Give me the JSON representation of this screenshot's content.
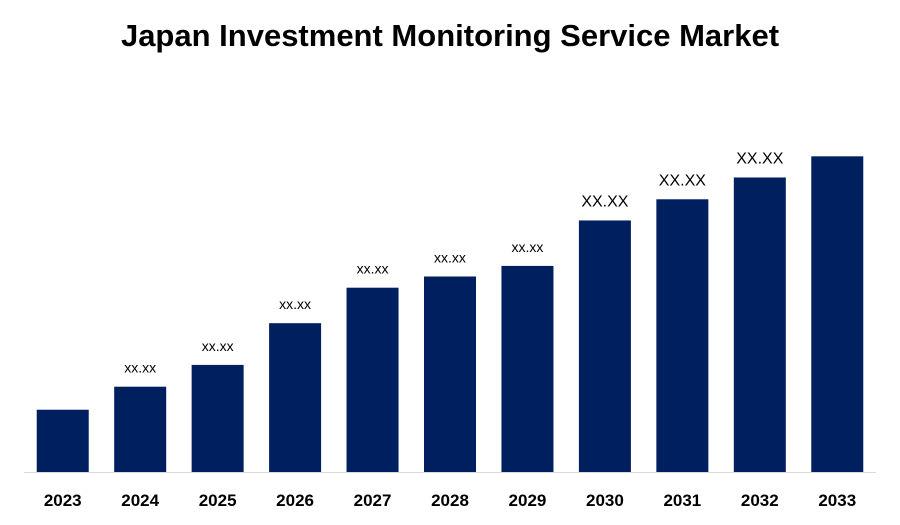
{
  "chart_data": {
    "type": "bar",
    "title": "Japan Investment Monitoring Service Market",
    "categories": [
      "2023",
      "2024",
      "2025",
      "2026",
      "2027",
      "2028",
      "2029",
      "2030",
      "2031",
      "2032",
      "2033"
    ],
    "values": [
      1.0,
      1.37,
      1.72,
      2.39,
      2.96,
      3.14,
      3.31,
      4.04,
      4.38,
      4.73,
      5.07
    ],
    "data_labels": [
      "",
      "xx.xx",
      "xx.xx",
      "xx.xx",
      "xx.xx",
      "xx.xx",
      "xx.xx",
      "XX.XX",
      "XX.XX",
      "XX.XX",
      ""
    ],
    "xlabel": "",
    "ylabel": "",
    "ylim": [
      0,
      5.3
    ],
    "grid": false,
    "bar_color": "#001f5f"
  }
}
